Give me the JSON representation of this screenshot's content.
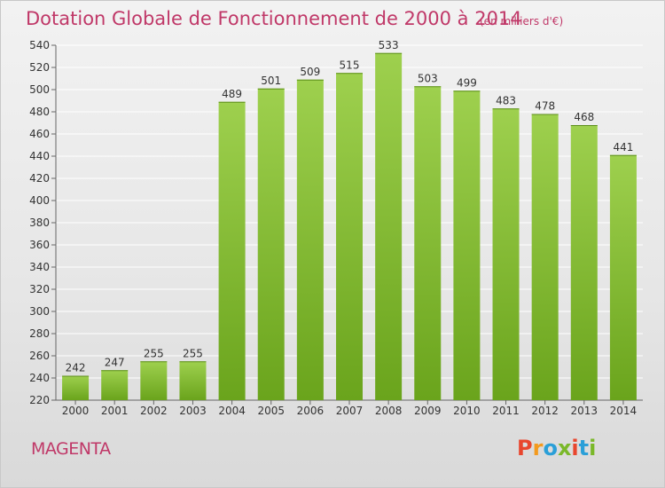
{
  "header": {
    "title": "Dotation Globale de Fonctionnement de 2000 à 2014",
    "subtitle": "(en milliers d'€)"
  },
  "footer": {
    "commune": "MAGENTA",
    "logo_text": "Proxiti"
  },
  "colors": {
    "bar_top": "#9ed04e",
    "bar_bottom": "#6aa41c",
    "title": "#c03868",
    "grid": "#ffffff",
    "logo": [
      "#e8462e",
      "#f39a1e",
      "#2a9fd8",
      "#7ab829",
      "#e8462e",
      "#2a9fd8",
      "#7ab829"
    ]
  },
  "chart_data": {
    "type": "bar",
    "title": "Dotation Globale de Fonctionnement de 2000 à 2014",
    "subtitle": "(en milliers d'€)",
    "xlabel": "",
    "ylabel": "",
    "categories": [
      "2000",
      "2001",
      "2002",
      "2003",
      "2004",
      "2005",
      "2006",
      "2007",
      "2008",
      "2009",
      "2010",
      "2011",
      "2012",
      "2013",
      "2014"
    ],
    "values": [
      242,
      247,
      255,
      255,
      489,
      501,
      509,
      515,
      533,
      503,
      499,
      483,
      478,
      468,
      441
    ],
    "ylim": [
      220,
      540
    ],
    "yticks": [
      220,
      240,
      260,
      280,
      300,
      320,
      340,
      360,
      380,
      400,
      420,
      440,
      460,
      480,
      500,
      520,
      540
    ],
    "grid": true,
    "data_labels": true
  }
}
